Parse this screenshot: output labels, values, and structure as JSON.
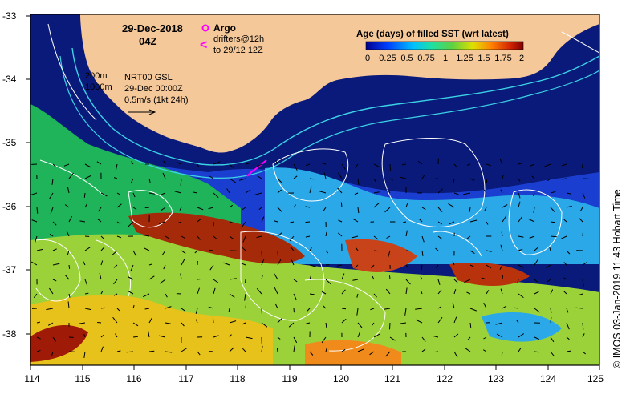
{
  "map": {
    "date": "29-Dec-2018",
    "time": "04Z",
    "legend_title": "Age (days) of filled SST (wrt latest)",
    "colorbar_ticks": [
      "0",
      "0.25",
      "0.5",
      "0.75",
      "1",
      "1.25",
      "1.5",
      "1.75",
      "2"
    ],
    "argo_label": "Argo",
    "drifters_label": "drifters@12h",
    "drifters_sub": "to 29/12 12Z",
    "isobath_200": "200m",
    "isobath_1000": "1000m",
    "model": "NRT00 GSL",
    "model_time": "29-Dec 00:00Z",
    "scale_text": "0.5m/s (1kt 24h)",
    "lat_labels": [
      "-33",
      "-34",
      "-35",
      "-36",
      "-37",
      "-38"
    ],
    "lon_labels": [
      "114",
      "115",
      "116",
      "117",
      "118",
      "119",
      "120",
      "121",
      "122",
      "123",
      "124",
      "125"
    ],
    "credit": "IMOS 03-Jan-2019 11:43 Hobart Time",
    "copyright_symbol": "©",
    "colors": {
      "land": "#f5c89a",
      "ocean_deep": "#0a1a7a",
      "argo": "#ff00ff",
      "contour": "#ffffff",
      "isobath": "#3cd2e6"
    }
  }
}
